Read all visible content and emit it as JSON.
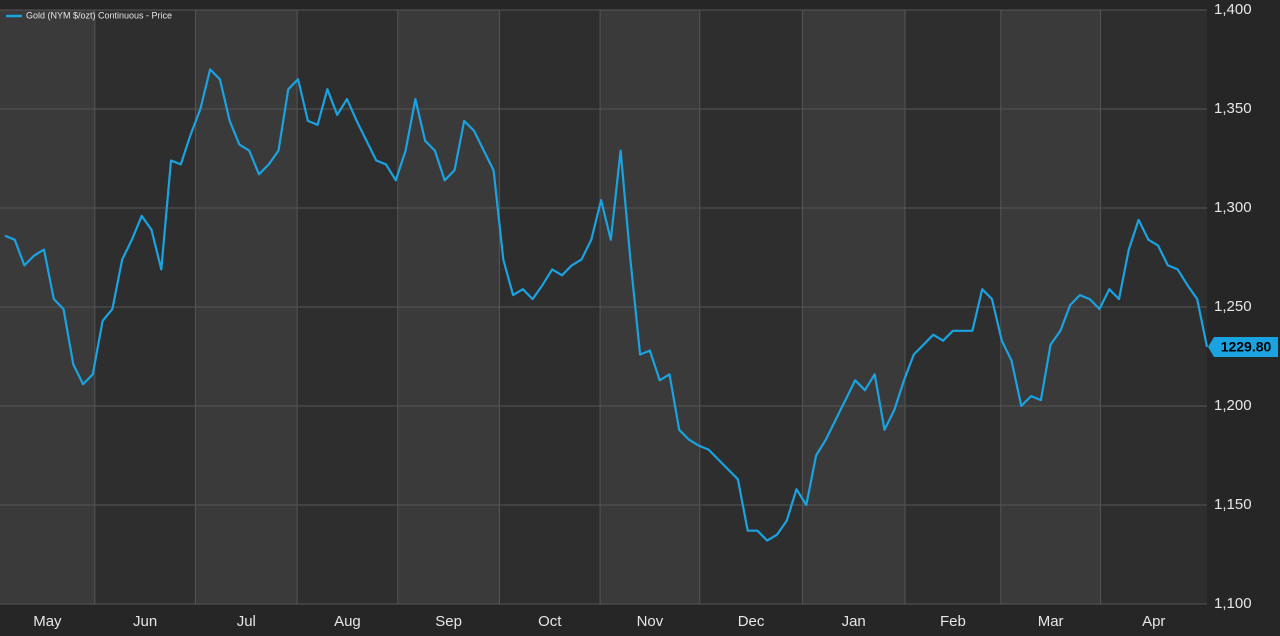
{
  "chart_data": {
    "type": "line",
    "series": [
      {
        "name": "Gold (NYM $/ozt) Continuous - Price",
        "color": "#1aa3e0",
        "values": [
          1286,
          1284,
          1271,
          1276,
          1279,
          1254,
          1249,
          1221,
          1211,
          1216,
          1243,
          1249,
          1274,
          1284,
          1296,
          1289,
          1269,
          1324,
          1322,
          1337,
          1350,
          1370,
          1365,
          1344,
          1332,
          1329,
          1317,
          1322,
          1329,
          1360,
          1365,
          1344,
          1342,
          1360,
          1347,
          1355,
          1344,
          1334,
          1324,
          1322,
          1314,
          1329,
          1355,
          1334,
          1329,
          1314,
          1319,
          1344,
          1339,
          1329,
          1319,
          1274,
          1256,
          1259,
          1254,
          1261,
          1269,
          1266,
          1271,
          1274,
          1284,
          1304,
          1284,
          1329,
          1274,
          1226,
          1228,
          1213,
          1216,
          1188,
          1183,
          1180,
          1178,
          1173,
          1168,
          1163,
          1137,
          1137,
          1132,
          1135,
          1142,
          1158,
          1150,
          1175,
          1183,
          1193,
          1203,
          1213,
          1208,
          1216,
          1188,
          1198,
          1213,
          1226,
          1231,
          1236,
          1233,
          1238,
          1238,
          1238,
          1259,
          1254,
          1233,
          1223,
          1200,
          1205,
          1203,
          1231,
          1238,
          1251,
          1256,
          1254,
          1249,
          1259,
          1254,
          1279,
          1294,
          1284,
          1281,
          1271,
          1269,
          1261,
          1254,
          1229.8
        ],
        "value_labels": [
          null,
          null,
          null,
          null,
          null,
          null,
          null,
          null,
          null,
          null,
          null,
          null,
          null,
          null,
          null,
          null,
          null,
          null,
          null,
          null,
          null,
          null,
          null,
          null,
          null,
          null,
          null,
          null,
          null,
          null,
          null,
          null,
          null,
          null,
          null,
          null,
          null,
          null,
          null,
          null,
          null,
          null,
          null,
          null,
          null,
          null,
          null,
          null,
          null,
          null,
          null,
          null,
          null,
          null,
          null,
          null,
          null,
          null,
          null,
          null,
          null,
          null,
          null,
          null,
          null,
          null,
          null,
          null,
          null,
          null,
          null,
          null,
          null,
          null,
          null,
          null,
          null,
          null,
          null,
          null,
          null,
          null,
          null,
          null,
          null,
          null,
          null,
          null,
          null,
          null,
          null,
          null,
          null,
          null,
          null,
          null,
          null,
          null,
          null,
          null,
          null,
          null,
          null,
          null,
          null,
          null,
          null,
          null,
          null,
          null,
          null,
          null,
          null,
          null,
          null,
          null,
          null,
          null,
          null,
          null,
          null,
          null,
          null,
          "1229.80"
        ]
      }
    ],
    "xlim": [
      -0.5,
      123
    ],
    "xticks": [
      {
        "value": -0.5,
        "label": "May"
      },
      {
        "value": 9.2,
        "label": "Jun"
      },
      {
        "value": 19.5,
        "label": "Jul"
      },
      {
        "value": 29.9,
        "label": "Aug"
      },
      {
        "value": 40.2,
        "label": "Sep"
      },
      {
        "value": 50.6,
        "label": "Oct"
      },
      {
        "value": 60.9,
        "label": "Nov"
      },
      {
        "value": 71.1,
        "label": "Dec"
      },
      {
        "value": 81.6,
        "label": "Jan"
      },
      {
        "value": 92.1,
        "label": "Feb"
      },
      {
        "value": 101.9,
        "label": "Mar"
      },
      {
        "value": 112.1,
        "label": "Apr"
      }
    ],
    "ylim": [
      1100,
      1400
    ],
    "yticks": [
      {
        "value": 1100,
        "label": "1,100"
      },
      {
        "value": 1150,
        "label": "1,150"
      },
      {
        "value": 1200,
        "label": "1,200"
      },
      {
        "value": 1250,
        "label": "1,250"
      },
      {
        "value": 1300,
        "label": "1,300"
      },
      {
        "value": 1350,
        "label": "1,350"
      },
      {
        "value": 1400,
        "label": "1,400"
      }
    ],
    "grid": true,
    "legend": "top-left"
  }
}
